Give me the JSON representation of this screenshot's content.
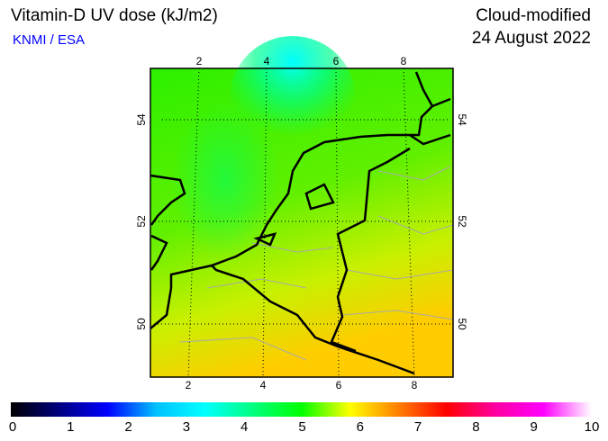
{
  "header": {
    "title": "Vitamin-D UV dose (kJ/m2)",
    "credit": "KNMI / ESA",
    "mode": "Cloud-modified",
    "date": "24 August 2022"
  },
  "map": {
    "lon_ticks": [
      "2",
      "4",
      "6",
      "8"
    ],
    "lat_ticks": [
      "54",
      "52",
      "50"
    ]
  },
  "colorbar": {
    "labels": [
      "0",
      "1",
      "2",
      "3",
      "4",
      "5",
      "6",
      "7",
      "8",
      "9",
      "10"
    ],
    "colors": [
      "#000000",
      "#000080",
      "#0000ff",
      "#00c0ff",
      "#00ffff",
      "#00ff80",
      "#00ff00",
      "#ffff00",
      "#ff8000",
      "#ff0000",
      "#ff00a0",
      "#ff00ff",
      "#ffffff"
    ]
  }
}
